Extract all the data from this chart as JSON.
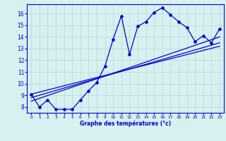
{
  "xlabel": "Graphe des températures (°c)",
  "bg_color": "#d8f0f0",
  "grid_color": "#b8dede",
  "line_color": "#0000cc",
  "ylim": [
    7.5,
    16.8
  ],
  "xlim": [
    -0.5,
    23.5
  ],
  "yticks": [
    8,
    9,
    10,
    11,
    12,
    13,
    14,
    15,
    16
  ],
  "xticks": [
    0,
    1,
    2,
    3,
    4,
    5,
    6,
    7,
    8,
    9,
    10,
    11,
    12,
    13,
    14,
    15,
    16,
    17,
    18,
    19,
    20,
    21,
    22,
    23
  ],
  "series1_x": [
    0,
    1,
    2,
    3,
    4,
    5,
    6,
    7,
    8,
    9,
    10,
    11,
    12,
    13,
    14,
    15,
    16,
    17,
    18,
    19,
    20,
    21,
    22,
    23
  ],
  "series1_y": [
    9.1,
    8.0,
    8.6,
    7.8,
    7.8,
    7.8,
    8.6,
    9.4,
    10.1,
    11.5,
    13.8,
    15.8,
    12.5,
    14.9,
    15.3,
    16.1,
    16.5,
    15.9,
    15.3,
    14.8,
    13.6,
    14.1,
    13.5,
    14.7
  ],
  "series2_x": [
    0,
    23
  ],
  "series2_y": [
    8.5,
    14.0
  ],
  "series3_x": [
    0,
    23
  ],
  "series3_y": [
    8.8,
    13.5
  ],
  "series4_x": [
    0,
    23
  ],
  "series4_y": [
    9.1,
    13.2
  ]
}
